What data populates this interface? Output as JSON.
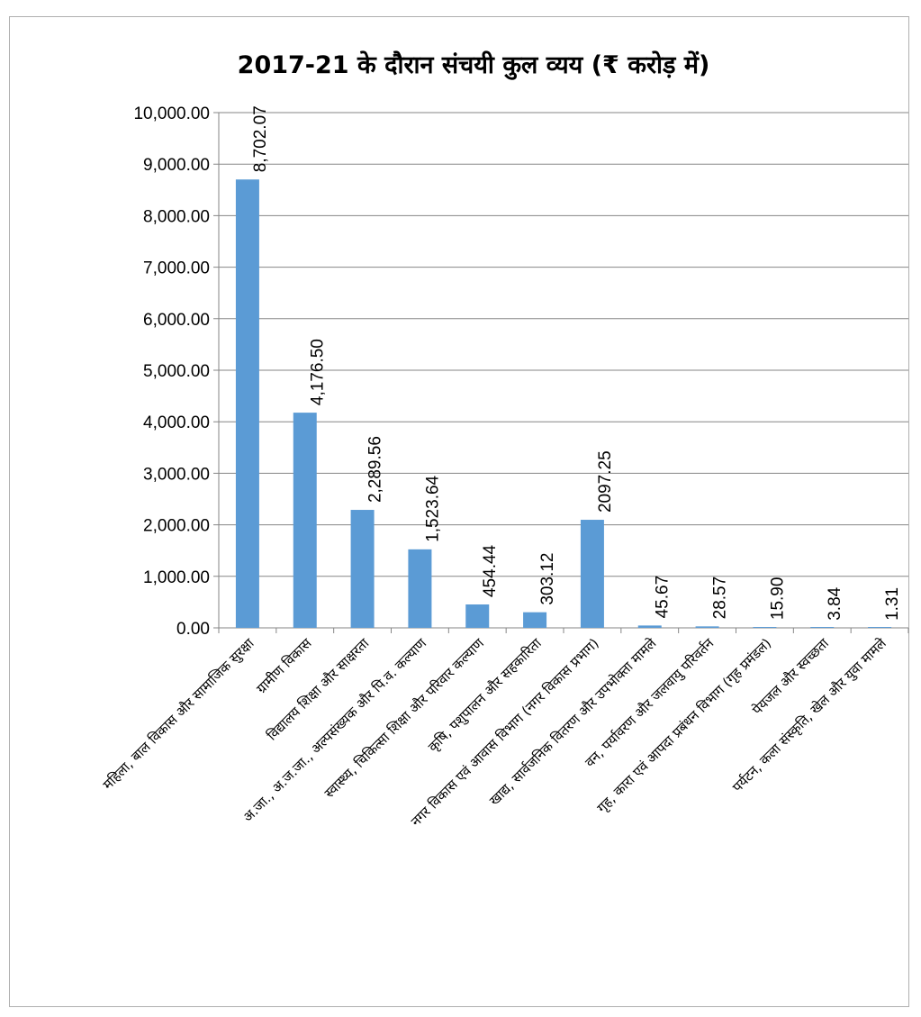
{
  "chart_data": {
    "type": "bar",
    "title": "2017-21 के दौरान संचयी कुल व्यय (₹ करोड़ में)",
    "xlabel": "",
    "ylabel": "",
    "ylim": [
      0,
      10000
    ],
    "ytick_step": 1000,
    "yticks": [
      "0.00",
      "1,000.00",
      "2,000.00",
      "3,000.00",
      "4,000.00",
      "5,000.00",
      "6,000.00",
      "7,000.00",
      "8,000.00",
      "9,000.00",
      "10,000.00"
    ],
    "grid": true,
    "legend": "none",
    "bar_color": "#5b9bd5",
    "categories": [
      "महिला, बाल विकास और सामाजिक सुरक्षा",
      "ग्रामीण विकास",
      "विद्यालय शिक्षा और साक्षरता",
      "अ.जा., अ.ज.जा., अल्पसंख्यक और पि.व. कल्याण",
      "स्वास्थ्य, चिकित्सा शिक्षा और परिवार कल्याण",
      "कृषि, पशुपालन और सहकारिता",
      "नगर  विकास एवं आवास विभाग (नगर विकास प्रभाग)",
      "खाद्य, सार्वजनिक वितरण और उपभोक्ता मामले",
      "वन, पर्यावरण और जलवायु परिवर्तन",
      "गृह, कारा एवं आपदा प्रबंधन विभाग (गृह प्रमंडल)",
      "पेयजल और स्वच्छता",
      "पर्यटन, कला संस्कृति, खेल और युवा मामले"
    ],
    "values": [
      8702.07,
      4176.5,
      2289.56,
      1523.64,
      454.44,
      303.12,
      2097.25,
      45.67,
      28.57,
      15.9,
      3.84,
      1.31
    ],
    "data_labels": [
      "8,702.07",
      "4,176.50",
      "2,289.56",
      "1,523.64",
      "454.44",
      "303.12",
      "2097.25",
      "45.67",
      "28.57",
      "15.90",
      "3.84",
      "1.31"
    ]
  }
}
